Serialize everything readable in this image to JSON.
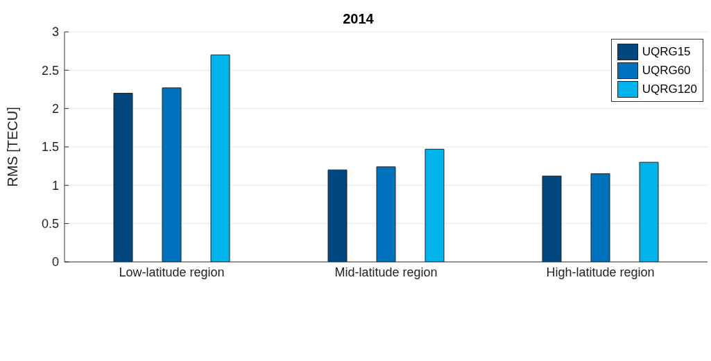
{
  "chart_data": {
    "type": "bar",
    "title": "2014",
    "ylabel": "RMS [TECU]",
    "categories": [
      "Low-latitude region",
      "Mid-latitude region",
      "High-latitude region"
    ],
    "series": [
      {
        "name": "UQRG15",
        "color": "#00467f",
        "values": [
          2.2,
          1.2,
          1.12
        ]
      },
      {
        "name": "UQRG60",
        "color": "#0072bd",
        "values": [
          2.27,
          1.24,
          1.15
        ]
      },
      {
        "name": "UQRG120",
        "color": "#00b4eb",
        "values": [
          2.7,
          1.47,
          1.3
        ]
      }
    ],
    "ylim": [
      0,
      3
    ],
    "yticks": [
      0,
      0.5,
      1,
      1.5,
      2,
      2.5,
      3
    ],
    "grid": "y",
    "legend": "top right"
  }
}
